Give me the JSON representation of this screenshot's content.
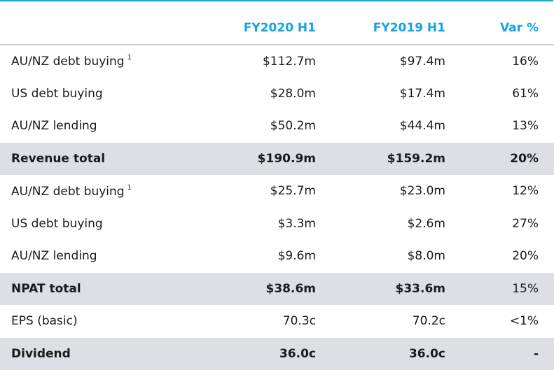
{
  "colors": {
    "header_text": "#17a3e0",
    "total_row_bg": "#dcdfe3",
    "accent": "#17a3e0"
  },
  "table": {
    "headers": [
      "",
      "FY2020 H1",
      "FY2019 H1",
      "Var %"
    ],
    "rows": [
      {
        "label": "AU/NZ debt buying",
        "footnote": "1",
        "fy2020": "$112.7m",
        "fy2019": "$97.4m",
        "var": "16%"
      },
      {
        "label": "US debt buying",
        "fy2020": "$28.0m",
        "fy2019": "$17.4m",
        "var": "61%"
      },
      {
        "label": "AU/NZ lending",
        "fy2020": "$50.2m",
        "fy2019": "$44.4m",
        "var": "13%"
      },
      {
        "label": "Revenue total",
        "fy2020": "$190.9m",
        "fy2019": "$159.2m",
        "var": "20%"
      },
      {
        "label": "AU/NZ debt buying",
        "footnote": "1",
        "fy2020": "$25.7m",
        "fy2019": "$23.0m",
        "var": "12%"
      },
      {
        "label": "US debt buying",
        "fy2020": "$3.3m",
        "fy2019": "$2.6m",
        "var": "27%"
      },
      {
        "label": "AU/NZ lending",
        "fy2020": "$9.6m",
        "fy2019": "$8.0m",
        "var": "20%"
      },
      {
        "label": "NPAT total",
        "fy2020": "$38.6m",
        "fy2019": "$33.6m",
        "var": "15%"
      },
      {
        "label": "EPS (basic)",
        "fy2020": "70.3c",
        "fy2019": "70.2c",
        "var": "<1%"
      },
      {
        "label": "Dividend",
        "fy2020": "36.0c",
        "fy2019": "36.0c",
        "var": "-"
      }
    ]
  }
}
